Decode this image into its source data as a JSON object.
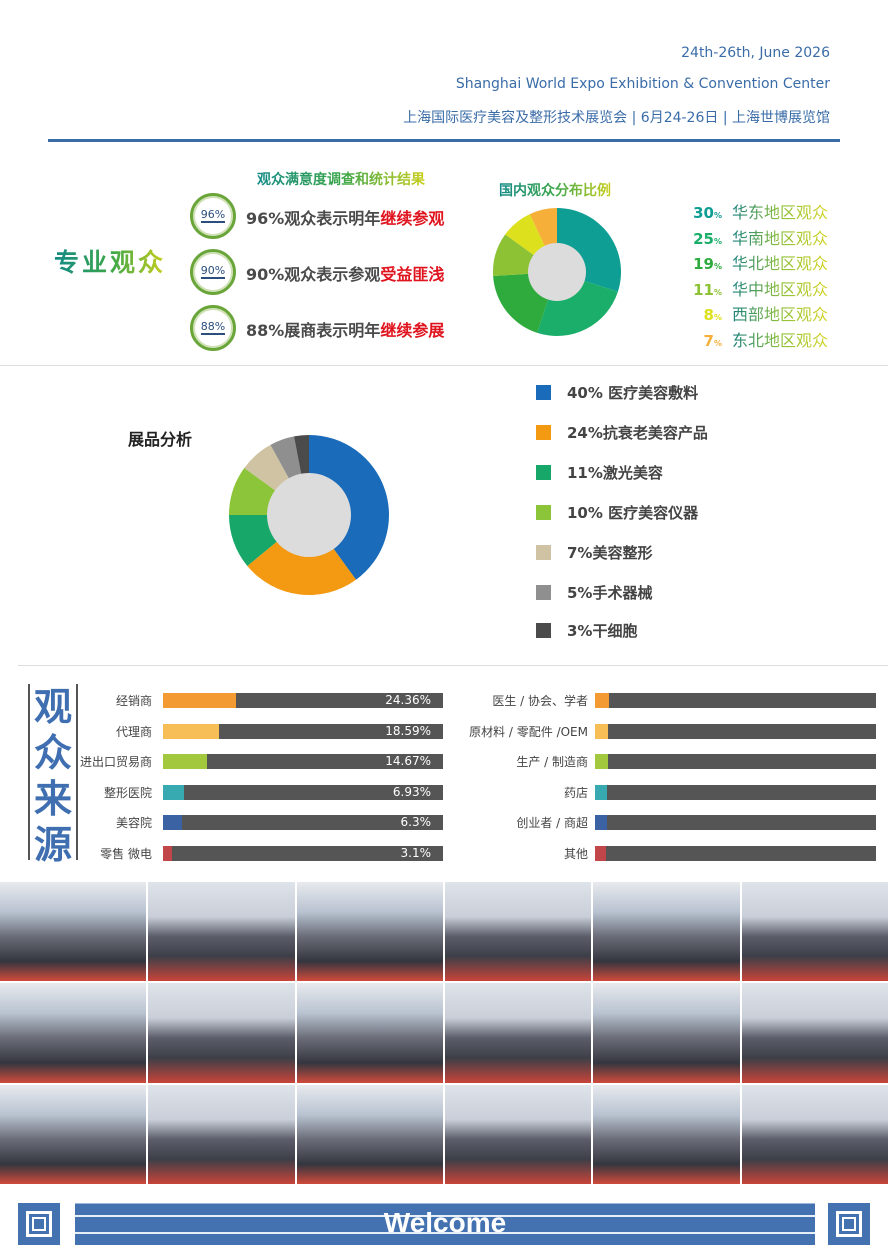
{
  "header": {
    "dates": "24th-26th, June 2026",
    "venue": "Shanghai World Expo Exhibition & Convention Center",
    "cn_line": "上海国际医疗美容及整形技术展览会 | 6月24-26日 | 上海世博展览馆",
    "accent": "#3a6ca8"
  },
  "survey": {
    "title": "观众满意度调查和统计结果",
    "label": "专业观众",
    "items": [
      {
        "badge": "96%",
        "text": "96%观众表示明年",
        "highlight": "继续参观"
      },
      {
        "badge": "90%",
        "text": "90%观众表示参观",
        "highlight": "受益匪浅"
      },
      {
        "badge": "88%",
        "text": "88%展商表示明年",
        "highlight": "继续参展"
      }
    ]
  },
  "domestic": {
    "title": "国内观众分布比例",
    "regions": [
      {
        "pct": 30,
        "pct_label": "30",
        "unit": "%",
        "name": "华东地区观众",
        "color": "#0f9e93"
      },
      {
        "pct": 25,
        "pct_label": "25",
        "unit": "%",
        "name": "华南地区观众",
        "color": "#1aae6a"
      },
      {
        "pct": 19,
        "pct_label": "19",
        "unit": "%",
        "name": "华北地区观众",
        "color": "#2eab3c"
      },
      {
        "pct": 11,
        "pct_label": "11",
        "unit": "%",
        "name": "华中地区观众",
        "color": "#8dc234"
      },
      {
        "pct": 8,
        "pct_label": "8",
        "unit": "%",
        "name": "西部地区观众",
        "color": "#dde01c"
      },
      {
        "pct": 7,
        "pct_label": "7",
        "unit": "%",
        "name": "东北地区观众",
        "color": "#f6b03a"
      }
    ]
  },
  "exhibits": {
    "title": "展品分析",
    "items": [
      {
        "pct": 40,
        "label": "40% 医疗美容敷料",
        "color": "#1a6bb9"
      },
      {
        "pct": 24,
        "label": "24%抗衰老美容产品",
        "color": "#f39a12"
      },
      {
        "pct": 11,
        "label": "11%激光美容",
        "color": "#17a769"
      },
      {
        "pct": 10,
        "label": "10% 医疗美容仪器",
        "color": "#8cc43a"
      },
      {
        "pct": 7,
        "label": "7%美容整形",
        "color": "#cfc3a3"
      },
      {
        "pct": 5,
        "label": "5%手术器械",
        "color": "#8f8f8f"
      },
      {
        "pct": 3,
        "label": "3%干细胞",
        "color": "#4b4b4b"
      }
    ]
  },
  "sources": {
    "title": [
      "观",
      "众",
      "来",
      "源"
    ],
    "left": [
      {
        "label": "经销商",
        "value": "24.36%",
        "pct": 24.36,
        "color": "#f39a32"
      },
      {
        "label": "代理商",
        "value": "18.59%",
        "pct": 18.59,
        "color": "#f7bd57"
      },
      {
        "label": "进出口贸易商",
        "value": "14.67%",
        "pct": 14.67,
        "color": "#a2c83e"
      },
      {
        "label": "整形医院",
        "value": "6.93%",
        "pct": 6.93,
        "color": "#36aab0"
      },
      {
        "label": "美容院",
        "value": "6.3%",
        "pct": 6.3,
        "color": "#3b62a3"
      },
      {
        "label": "零售 微电",
        "value": "3.1%",
        "pct": 3.1,
        "color": "#c0464a"
      }
    ],
    "right": [
      {
        "label": "医生 / 协会、学者",
        "color": "#f39a32"
      },
      {
        "label": "原材料 / 零配件 /OEM",
        "color": "#f7bd57"
      },
      {
        "label": "生产 / 制造商",
        "color": "#a2c83e"
      },
      {
        "label": "药店",
        "color": "#36aab0"
      },
      {
        "label": "创业者 / 商超",
        "color": "#3b62a3"
      },
      {
        "label": "其他",
        "color": "#c0464a"
      }
    ]
  },
  "footer": {
    "welcome": "Welcome"
  }
}
